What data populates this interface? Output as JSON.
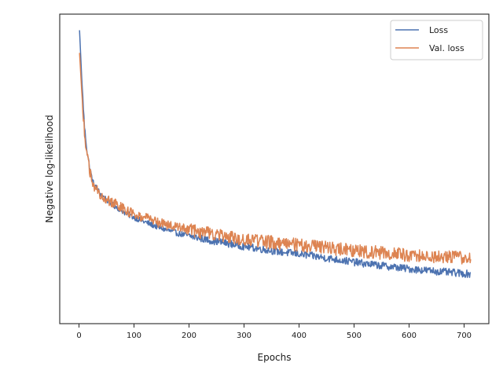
{
  "chart_data": {
    "type": "line",
    "title": "",
    "xlabel": "Epochs",
    "ylabel": "Negative log-likelihood",
    "xlim": [
      -35,
      745
    ],
    "ylim": [
      0.02,
      0.98
    ],
    "x_ticks": [
      0,
      100,
      200,
      300,
      400,
      500,
      600,
      700
    ],
    "y_ticks_shown": false,
    "grid": false,
    "legend": {
      "placement": "top-right"
    },
    "series": [
      {
        "name": "Loss",
        "color": "#4c72b0",
        "points": [
          [
            1,
            0.93
          ],
          [
            5,
            0.78
          ],
          [
            10,
            0.63
          ],
          [
            15,
            0.55
          ],
          [
            20,
            0.5
          ],
          [
            25,
            0.46
          ],
          [
            30,
            0.445
          ],
          [
            40,
            0.42
          ],
          [
            50,
            0.405
          ],
          [
            60,
            0.39
          ],
          [
            70,
            0.38
          ],
          [
            80,
            0.368
          ],
          [
            90,
            0.358
          ],
          [
            100,
            0.35
          ],
          [
            120,
            0.335
          ],
          [
            140,
            0.322
          ],
          [
            160,
            0.31
          ],
          [
            180,
            0.3
          ],
          [
            200,
            0.292
          ],
          [
            220,
            0.285
          ],
          [
            240,
            0.278
          ],
          [
            260,
            0.272
          ],
          [
            280,
            0.266
          ],
          [
            300,
            0.26
          ],
          [
            330,
            0.252
          ],
          [
            360,
            0.244
          ],
          [
            400,
            0.236
          ],
          [
            440,
            0.226
          ],
          [
            480,
            0.216
          ],
          [
            520,
            0.206
          ],
          [
            560,
            0.198
          ],
          [
            600,
            0.19
          ],
          [
            640,
            0.184
          ],
          [
            680,
            0.178
          ],
          [
            712,
            0.174
          ]
        ]
      },
      {
        "name": "Val. loss",
        "color": "#dd8452",
        "points": [
          [
            1,
            0.86
          ],
          [
            5,
            0.74
          ],
          [
            10,
            0.61
          ],
          [
            15,
            0.54
          ],
          [
            20,
            0.49
          ],
          [
            25,
            0.455
          ],
          [
            30,
            0.44
          ],
          [
            40,
            0.42
          ],
          [
            50,
            0.407
          ],
          [
            60,
            0.396
          ],
          [
            70,
            0.387
          ],
          [
            80,
            0.377
          ],
          [
            90,
            0.368
          ],
          [
            100,
            0.36
          ],
          [
            120,
            0.348
          ],
          [
            140,
            0.336
          ],
          [
            160,
            0.326
          ],
          [
            180,
            0.318
          ],
          [
            200,
            0.31
          ],
          [
            220,
            0.304
          ],
          [
            240,
            0.298
          ],
          [
            260,
            0.292
          ],
          [
            280,
            0.287
          ],
          [
            300,
            0.282
          ],
          [
            330,
            0.276
          ],
          [
            360,
            0.27
          ],
          [
            400,
            0.264
          ],
          [
            440,
            0.257
          ],
          [
            480,
            0.25
          ],
          [
            520,
            0.244
          ],
          [
            560,
            0.238
          ],
          [
            600,
            0.233
          ],
          [
            640,
            0.229
          ],
          [
            680,
            0.226
          ],
          [
            712,
            0.224
          ]
        ]
      }
    ]
  }
}
